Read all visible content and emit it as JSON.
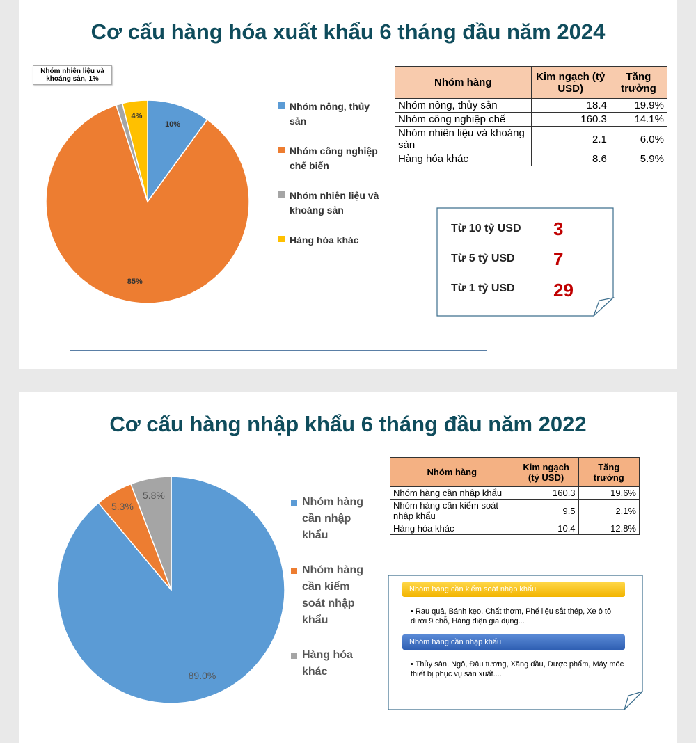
{
  "chart_data": [
    {
      "type": "pie",
      "title": "Cơ cấu hàng hóa xuất khẩu 6 tháng đầu năm 2024",
      "categories": [
        "Nhóm nông, thủy sản",
        "Nhóm công nghiệp chế biến",
        "Nhóm nhiên liệu và khoáng sản",
        "Hàng hóa khác"
      ],
      "values": [
        10,
        85,
        1,
        4
      ],
      "value_labels": [
        "10%",
        "85%",
        "Nhóm nhiên liệu và khoáng sản, 1%",
        "4%"
      ],
      "colors": [
        "#5b9bd5",
        "#ed7d31",
        "#a5a5a5",
        "#ffc000"
      ]
    },
    {
      "type": "pie",
      "title": "Cơ cấu hàng nhập khẩu 6 tháng đầu năm 2022",
      "categories": [
        "Nhóm hàng cần nhập khẩu",
        "Nhóm hàng cần kiểm soát nhập khẩu",
        "Hàng hóa khác"
      ],
      "values": [
        89.0,
        5.3,
        5.8
      ],
      "value_labels": [
        "89.0%",
        "5.3%",
        "5.8%"
      ],
      "colors": [
        "#5b9bd5",
        "#ed7d31",
        "#a5a5a5"
      ]
    }
  ],
  "tables": [
    {
      "header": [
        "Nhóm hàng",
        "Kim ngạch (tỷ USD)",
        "Tăng trưởng"
      ],
      "rows": [
        [
          "Nhóm nông, thủy sản",
          "18.4",
          "19.9%"
        ],
        [
          "Nhóm công nghiệp chế",
          "160.3",
          "14.1%"
        ],
        [
          "Nhóm nhiên liệu và khoáng sản",
          "2.1",
          "6.0%"
        ],
        [
          "Hàng hóa khác",
          "8.6",
          "5.9%"
        ]
      ]
    },
    {
      "header": [
        "Nhóm hàng",
        "Kim ngạch (tỷ USD)",
        "Tăng trưởng"
      ],
      "rows": [
        [
          "Nhóm hàng cần nhập khẩu",
          "160.3",
          "19.6%"
        ],
        [
          "Nhóm hàng cần kiểm soát nhập khẩu",
          "9.5",
          "2.1%"
        ],
        [
          "Hàng hóa khác",
          "10.4",
          "12.8%"
        ]
      ]
    }
  ],
  "stats": [
    {
      "label": "Từ 10 tỷ USD",
      "value": "3"
    },
    {
      "label": "Từ 5 tỷ USD",
      "value": "7"
    },
    {
      "label": "Từ 1 tỷ USD",
      "value": "29"
    }
  ],
  "notes": [
    {
      "heading": "Nhóm hàng cần kiểm soát nhập khẩu",
      "text": "• Rau quả, Bánh kẹo, Chất thơm, Phế liệu sắt thép, Xe ô tô dưới 9 chỗ, Hàng điện gia dụng..."
    },
    {
      "heading": "Nhóm hàng cần nhập khẩu",
      "text": "• Thủy sản, Ngô, Đậu tương, Xăng dầu, Dược phẩm, Máy móc thiết bị phục vụ sản xuất...."
    }
  ]
}
